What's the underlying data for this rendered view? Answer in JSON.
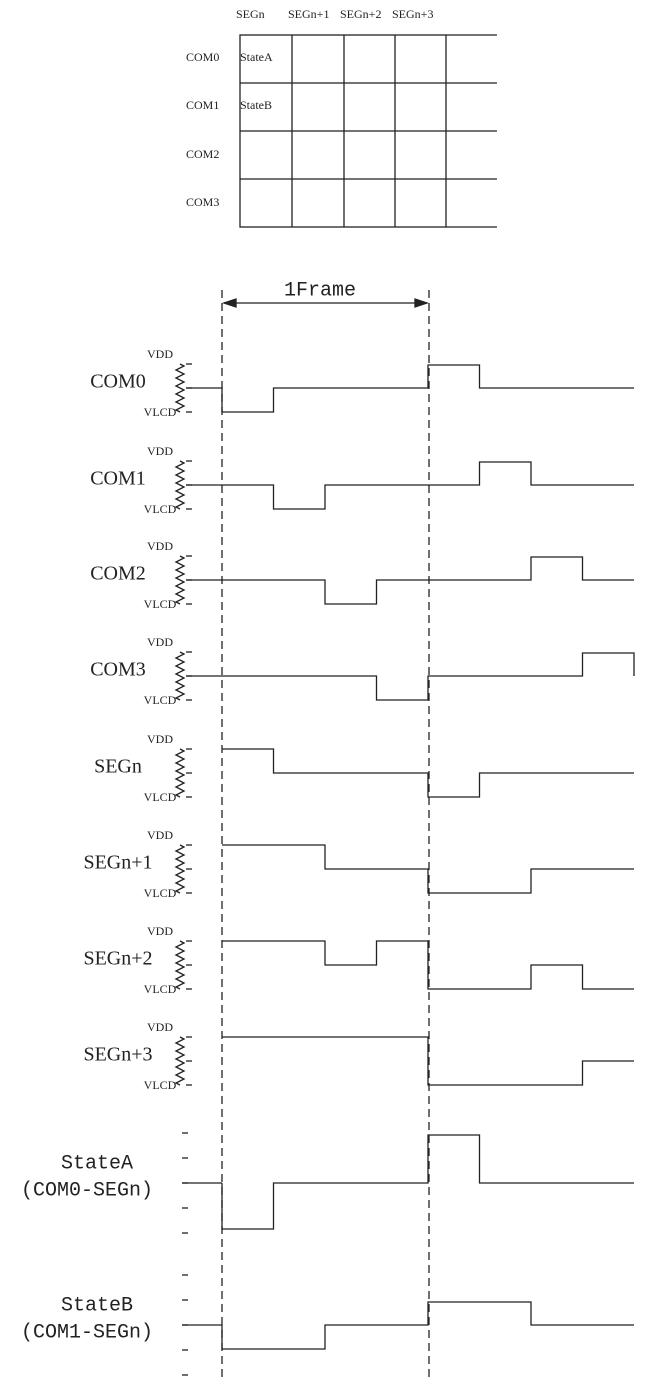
{
  "table": {
    "columns": [
      "SEGn",
      "SEGn+1",
      "SEGn+2",
      "SEGn+3"
    ],
    "rows": [
      "COM0",
      "COM1",
      "COM2",
      "COM3"
    ],
    "cells": [
      "StateA",
      "StateB"
    ]
  },
  "frame_label": "1Frame",
  "waveforms": [
    {
      "label": "COM0",
      "vdd": "VDD",
      "vlcd": "VLCD"
    },
    {
      "label": "COM1",
      "vdd": "VDD",
      "vlcd": "VLCD"
    },
    {
      "label": "COM2",
      "vdd": "VDD",
      "vlcd": "VLCD"
    },
    {
      "label": "COM3",
      "vdd": "VDD",
      "vlcd": "VLCD"
    },
    {
      "label": "SEGn",
      "vdd": "VDD",
      "vlcd": "VLCD"
    },
    {
      "label": "SEGn+1",
      "vdd": "VDD",
      "vlcd": "VLCD"
    },
    {
      "label": "SEGn+2",
      "vdd": "VDD",
      "vlcd": "VLCD"
    },
    {
      "label": "SEGn+3",
      "vdd": "VDD",
      "vlcd": "VLCD"
    }
  ],
  "states": [
    {
      "name": "StateA",
      "formula": "(COM0-SEGn)"
    },
    {
      "name": "StateB",
      "formula": "(COM1-SEGn)"
    }
  ]
}
